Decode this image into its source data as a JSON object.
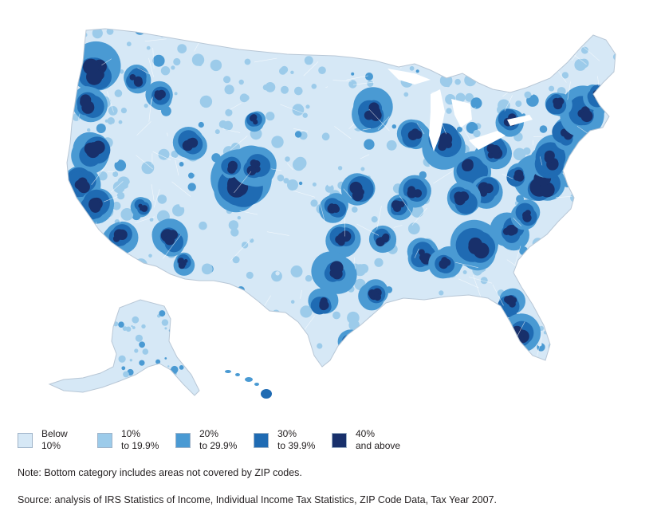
{
  "legend": {
    "items": [
      {
        "line1": "Below",
        "line2": "10%",
        "color": "#d6e8f6"
      },
      {
        "line1": "10%",
        "line2": "to 19.9%",
        "color": "#9ccbea"
      },
      {
        "line1": "20%",
        "line2": "to 29.9%",
        "color": "#4a9ad3"
      },
      {
        "line1": "30%",
        "line2": "to 39.9%",
        "color": "#1f6bb3"
      },
      {
        "line1": "40%",
        "line2": "and above",
        "color": "#18306b"
      }
    ]
  },
  "note": "Note: Bottom category includes areas not covered by ZIP codes.",
  "source": "Source: analysis of IRS Statistics of Income, Individual Income Tax Statistics, ZIP Code Data, Tax Year 2007.",
  "map": {
    "border_color": "#ffffff",
    "region_labels": [
      "contiguous-us",
      "alaska",
      "hawaii"
    ]
  }
}
